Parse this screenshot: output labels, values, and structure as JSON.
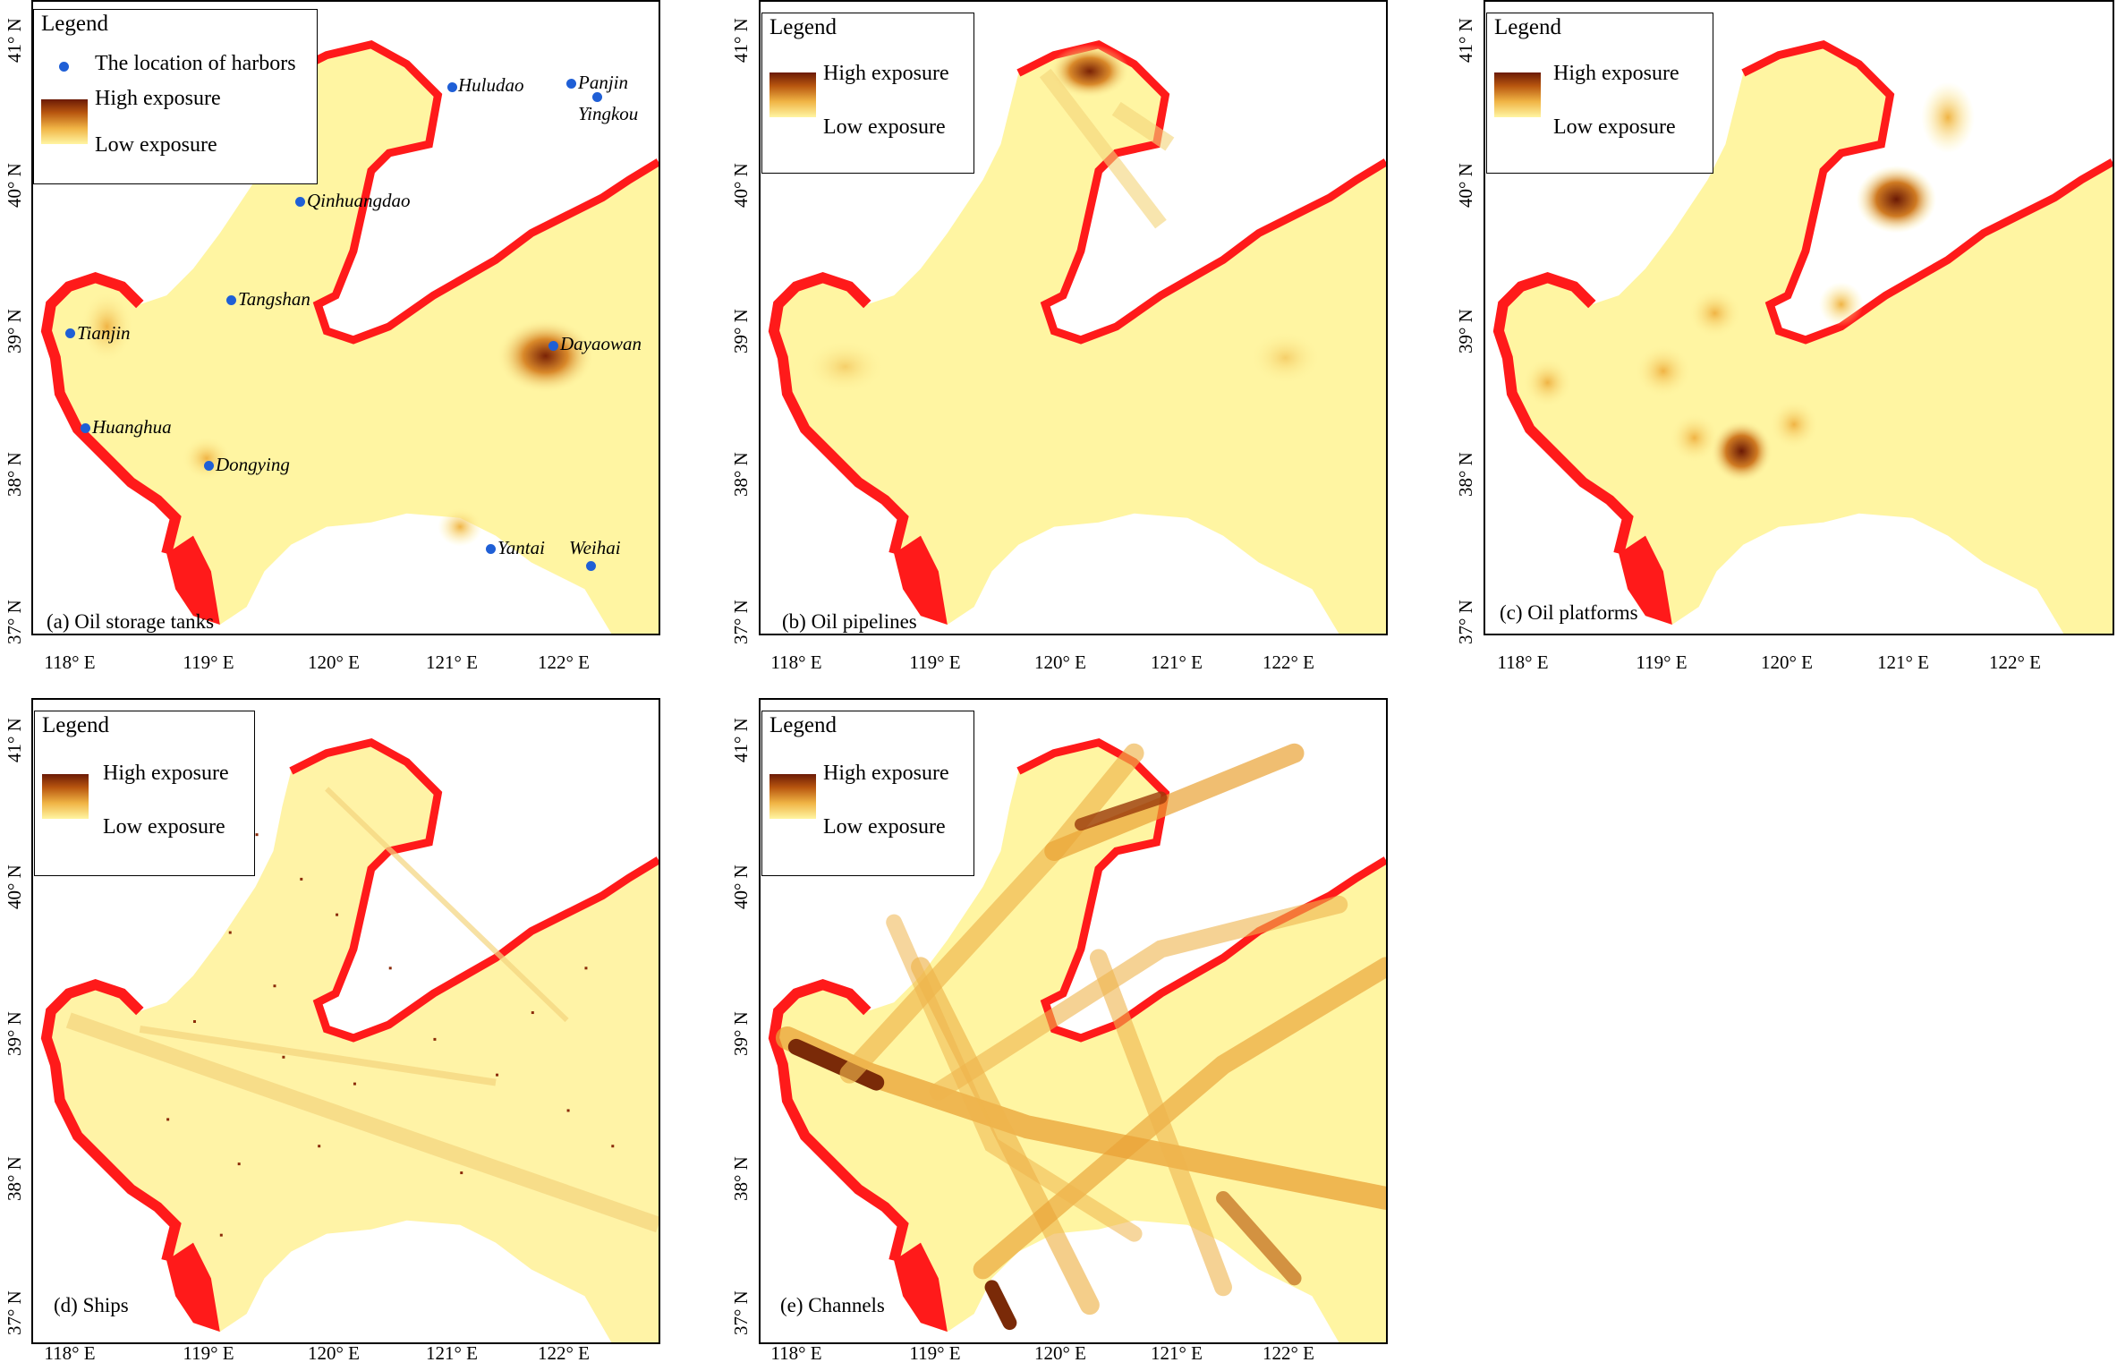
{
  "legend": {
    "title": "Legend",
    "harbor_label": "The location of harbors",
    "high_label": "High exposure",
    "low_label": "Low exposure"
  },
  "axes": {
    "x_ticks": [
      "118° E",
      "119° E",
      "120° E",
      "121° E",
      "122° E"
    ],
    "y_ticks": [
      "41° N",
      "40° N",
      "39° N",
      "38° N",
      "37° N"
    ]
  },
  "panels": [
    {
      "id": "a",
      "label": "(a) Oil storage tanks"
    },
    {
      "id": "b",
      "label": "(b) Oil pipelines"
    },
    {
      "id": "c",
      "label": "(c) Oil platforms"
    },
    {
      "id": "d",
      "label": "(d) Ships"
    },
    {
      "id": "e",
      "label": "(e) Channels"
    }
  ],
  "harbors": [
    {
      "name": "Huludao"
    },
    {
      "name": "Panjin"
    },
    {
      "name": "Yingkou"
    },
    {
      "name": "Qinhuangdao"
    },
    {
      "name": "Tangshan"
    },
    {
      "name": "Tianjin"
    },
    {
      "name": "Dayaowan"
    },
    {
      "name": "Huanghua"
    },
    {
      "name": "Dongying"
    },
    {
      "name": "Yantai"
    },
    {
      "name": "Weihai"
    }
  ],
  "colors": {
    "sea": "#fff5a2",
    "coast": "#ff1a1a",
    "high": "#6b1a05",
    "harbor": "#1f5fd6"
  }
}
